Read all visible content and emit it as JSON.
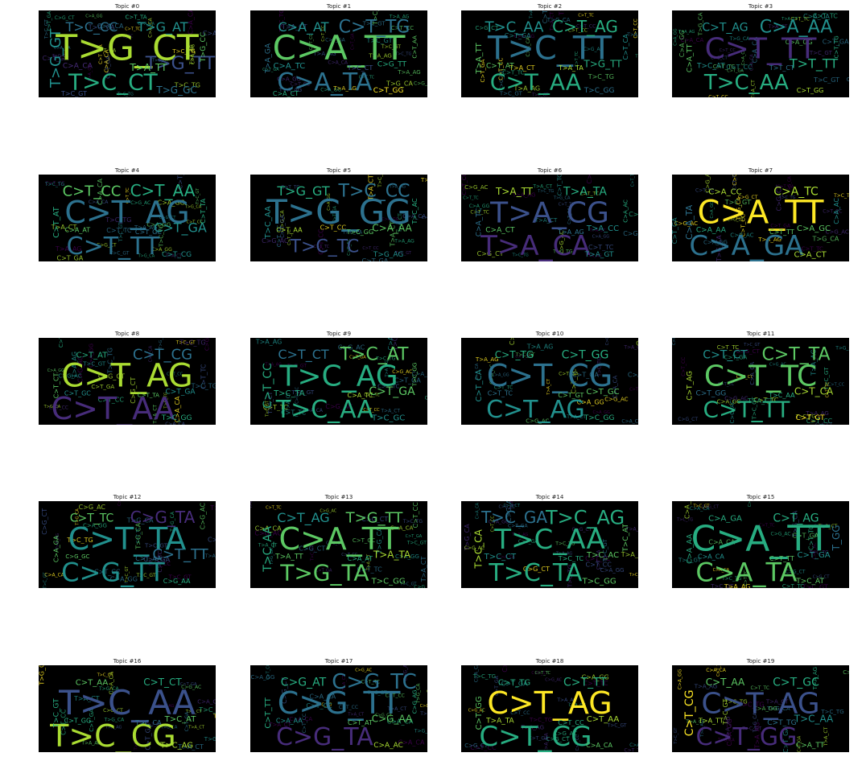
{
  "palette": [
    "#440154",
    "#472c7a",
    "#3b518b",
    "#2c718e",
    "#21908d",
    "#27ad81",
    "#5cc863",
    "#aadc32",
    "#fde725"
  ],
  "panels": [
    {
      "title": "Topic #0",
      "words": [
        {
          "t": "T>G_CT",
          "s": 44,
          "c": 7
        },
        {
          "t": "T>C_CT",
          "s": 28,
          "c": 5
        },
        {
          "t": "T>G_AT",
          "s": 16,
          "c": 4
        },
        {
          "t": "T>C_CC",
          "s": 16,
          "c": 3
        },
        {
          "t": "T>G_TT",
          "s": 22,
          "c": 2
        },
        {
          "t": "T>G_GT",
          "s": 18,
          "c": 4
        },
        {
          "t": "T>G_GC",
          "s": 12,
          "c": 3
        },
        {
          "t": "C>A_CA",
          "s": 9,
          "c": 1
        },
        {
          "t": "T>A_TT",
          "s": 12,
          "c": 6
        },
        {
          "t": "T>G_CC",
          "s": 9,
          "c": 6
        },
        {
          "t": "T>C_GT",
          "s": 8,
          "c": 2
        },
        {
          "t": "C>T_TA",
          "s": 7,
          "c": 5
        }
      ]
    },
    {
      "title": "Topic #1",
      "words": [
        {
          "t": "C>A_TT",
          "s": 42,
          "c": 6
        },
        {
          "t": "C>A_TA",
          "s": 30,
          "c": 3
        },
        {
          "t": "C>T_TG",
          "s": 22,
          "c": 3
        },
        {
          "t": "C>A_AT",
          "s": 16,
          "c": 4
        },
        {
          "t": "C>G_TT",
          "s": 9,
          "c": 5
        },
        {
          "t": "T>A_GA",
          "s": 9,
          "c": 3
        },
        {
          "t": "C>T_GG",
          "s": 9,
          "c": 8
        },
        {
          "t": "C>A_TC",
          "s": 10,
          "c": 4
        },
        {
          "t": "T>C_CT",
          "s": 8,
          "c": 2
        },
        {
          "t": "C>T_AA",
          "s": 7,
          "c": 6
        },
        {
          "t": "C>A_CT",
          "s": 8,
          "c": 5
        }
      ]
    },
    {
      "title": "Topic #2",
      "words": [
        {
          "t": "T>C_TT",
          "s": 40,
          "c": 3
        },
        {
          "t": "C>T_AA",
          "s": 28,
          "c": 5
        },
        {
          "t": "C>T_AG",
          "s": 20,
          "c": 5
        },
        {
          "t": "T>C_AA",
          "s": 18,
          "c": 4
        },
        {
          "t": "T>G_TT",
          "s": 12,
          "c": 5
        },
        {
          "t": "T>A_TT",
          "s": 10,
          "c": 6
        },
        {
          "t": "T>C_GG",
          "s": 9,
          "c": 3
        },
        {
          "t": "C>T_AT",
          "s": 9,
          "c": 6
        },
        {
          "t": "T>A_TA",
          "s": 8,
          "c": 7
        },
        {
          "t": "C>T_CA",
          "s": 8,
          "c": 4
        }
      ]
    },
    {
      "title": "Topic #3",
      "words": [
        {
          "t": "C>T_TT",
          "s": 36,
          "c": 1
        },
        {
          "t": "T>C_AA",
          "s": 26,
          "c": 5
        },
        {
          "t": "C>A_AA",
          "s": 22,
          "c": 4
        },
        {
          "t": "C>T_AG",
          "s": 14,
          "c": 4
        },
        {
          "t": "T>T_TT",
          "s": 16,
          "c": 5
        },
        {
          "t": "C>A_TT",
          "s": 9,
          "c": 6
        },
        {
          "t": "C>T_GG",
          "s": 8,
          "c": 7
        },
        {
          "t": "T>C_AT",
          "s": 9,
          "c": 4
        },
        {
          "t": "T>T_CT",
          "s": 8,
          "c": 3
        },
        {
          "t": "C>T_TG",
          "s": 7,
          "c": 5
        }
      ]
    },
    {
      "title": "Topic #4",
      "words": [
        {
          "t": "C>T_AG",
          "s": 38,
          "c": 3
        },
        {
          "t": "C>T_TT",
          "s": 30,
          "c": 3
        },
        {
          "t": "C>T_AA",
          "s": 20,
          "c": 5
        },
        {
          "t": "C>T_CC",
          "s": 18,
          "c": 6
        },
        {
          "t": "C>T_GA",
          "s": 16,
          "c": 4
        },
        {
          "t": "C>T_AT",
          "s": 10,
          "c": 5
        },
        {
          "t": "C>T_CG",
          "s": 9,
          "c": 4
        },
        {
          "t": "C>A_AT",
          "s": 8,
          "c": 6
        },
        {
          "t": "C>T_GC",
          "s": 8,
          "c": 3
        },
        {
          "t": "C>T_TA",
          "s": 8,
          "c": 5
        }
      ]
    },
    {
      "title": "Topic #5",
      "words": [
        {
          "t": "T>G_GG",
          "s": 42,
          "c": 3
        },
        {
          "t": "T>C_TC",
          "s": 22,
          "c": 2
        },
        {
          "t": "T>C_CC",
          "s": 22,
          "c": 3
        },
        {
          "t": "T>G_GT",
          "s": 16,
          "c": 5
        },
        {
          "t": "C>A_AA",
          "s": 12,
          "c": 6
        },
        {
          "t": "T>C_AA",
          "s": 10,
          "c": 4
        },
        {
          "t": "T>G_AG",
          "s": 9,
          "c": 4
        },
        {
          "t": "C>T_AA",
          "s": 8,
          "c": 7
        },
        {
          "t": "T>C_GG",
          "s": 8,
          "c": 6
        },
        {
          "t": "T>C_AC",
          "s": 8,
          "c": 5
        }
      ]
    },
    {
      "title": "Topic #6",
      "words": [
        {
          "t": "T>A_CG",
          "s": 36,
          "c": 2
        },
        {
          "t": "T>A_CA",
          "s": 34,
          "c": 1
        },
        {
          "t": "T>A_TA",
          "s": 14,
          "c": 5
        },
        {
          "t": "T>A_TT",
          "s": 12,
          "c": 7
        },
        {
          "t": "T>A_CC",
          "s": 10,
          "c": 4
        },
        {
          "t": "C>A_TC",
          "s": 9,
          "c": 3
        },
        {
          "t": "T>A_GT",
          "s": 9,
          "c": 4
        },
        {
          "t": "C>A_CT",
          "s": 9,
          "c": 6
        },
        {
          "t": "T>A_AG",
          "s": 8,
          "c": 3
        },
        {
          "t": "C>A_AC",
          "s": 7,
          "c": 5
        }
      ]
    },
    {
      "title": "Topic #7",
      "words": [
        {
          "t": "C>A_TT",
          "s": 40,
          "c": 8
        },
        {
          "t": "C>A_GA",
          "s": 34,
          "c": 3
        },
        {
          "t": "C>A_TC",
          "s": 14,
          "c": 7
        },
        {
          "t": "C>A_CC",
          "s": 10,
          "c": 7
        },
        {
          "t": "C>A_GC",
          "s": 10,
          "c": 6
        },
        {
          "t": "C>A_TA",
          "s": 11,
          "c": 3
        },
        {
          "t": "C>A_CT",
          "s": 10,
          "c": 7
        },
        {
          "t": "C>A_AA",
          "s": 9,
          "c": 5
        },
        {
          "t": "C>T_TT",
          "s": 8,
          "c": 6
        },
        {
          "t": "C>A_AC",
          "s": 8,
          "c": 4
        }
      ]
    },
    {
      "title": "Topic #8",
      "words": [
        {
          "t": "C>T_AG",
          "s": 40,
          "c": 7
        },
        {
          "t": "C>T_AA",
          "s": 38,
          "c": 1
        },
        {
          "t": "C>T_CG",
          "s": 18,
          "c": 3
        },
        {
          "t": "C>T_AT",
          "s": 10,
          "c": 5
        },
        {
          "t": "C>T_GA",
          "s": 9,
          "c": 4
        },
        {
          "t": "C>T_CT",
          "s": 8,
          "c": 6
        },
        {
          "t": "T>C_GG",
          "s": 9,
          "c": 5
        },
        {
          "t": "C>T_GC",
          "s": 8,
          "c": 4
        },
        {
          "t": "C>T_TA",
          "s": 7,
          "c": 6
        }
      ]
    },
    {
      "title": "Topic #9",
      "words": [
        {
          "t": "T>C_AG",
          "s": 36,
          "c": 5
        },
        {
          "t": "T>C_AA",
          "s": 30,
          "c": 5
        },
        {
          "t": "T>C_AT",
          "s": 22,
          "c": 6
        },
        {
          "t": "C>T_CT",
          "s": 16,
          "c": 3
        },
        {
          "t": "C>T_GA",
          "s": 14,
          "c": 6
        },
        {
          "t": "C>T_CC",
          "s": 14,
          "c": 5
        },
        {
          "t": "T>C_GC",
          "s": 10,
          "c": 4
        },
        {
          "t": "T>C_TA",
          "s": 10,
          "c": 5
        },
        {
          "t": "C>A_TC",
          "s": 8,
          "c": 7
        },
        {
          "t": "T>C_GG",
          "s": 7,
          "c": 6
        }
      ]
    },
    {
      "title": "Topic #10",
      "words": [
        {
          "t": "C>T_CG",
          "s": 38,
          "c": 3
        },
        {
          "t": "C>T_AG",
          "s": 30,
          "c": 4
        },
        {
          "t": "C>T_GG",
          "s": 14,
          "c": 5
        },
        {
          "t": "C>T_TG",
          "s": 12,
          "c": 5
        },
        {
          "t": "C>T_GC",
          "s": 10,
          "c": 6
        },
        {
          "t": "C>T_CA",
          "s": 10,
          "c": 4
        },
        {
          "t": "T>C_GG",
          "s": 9,
          "c": 5
        },
        {
          "t": "C>T_TC",
          "s": 8,
          "c": 3
        },
        {
          "t": "C>T_GT",
          "s": 8,
          "c": 6
        }
      ]
    },
    {
      "title": "Topic #11",
      "words": [
        {
          "t": "C>T_TC",
          "s": 36,
          "c": 6
        },
        {
          "t": "C>T_TT",
          "s": 28,
          "c": 5
        },
        {
          "t": "C>T_TA",
          "s": 22,
          "c": 6
        },
        {
          "t": "C>T_CT",
          "s": 14,
          "c": 4
        },
        {
          "t": "C>T_CA",
          "s": 12,
          "c": 7
        },
        {
          "t": "C>T_AG",
          "s": 9,
          "c": 7
        },
        {
          "t": "C>T_GT",
          "s": 9,
          "c": 8
        },
        {
          "t": "C>T_GG",
          "s": 9,
          "c": 3
        },
        {
          "t": "T>C_AA",
          "s": 8,
          "c": 5
        }
      ]
    },
    {
      "title": "Topic #12",
      "words": [
        {
          "t": "C>T_TA",
          "s": 38,
          "c": 4
        },
        {
          "t": "C>G_TT",
          "s": 32,
          "c": 4
        },
        {
          "t": "C>G_TA",
          "s": 20,
          "c": 1
        },
        {
          "t": "C>T_TC",
          "s": 14,
          "c": 6
        },
        {
          "t": "C>T_TT",
          "s": 18,
          "c": 3
        },
        {
          "t": "C>A_GA",
          "s": 8,
          "c": 6
        },
        {
          "t": "C>G_AA",
          "s": 8,
          "c": 5
        },
        {
          "t": "C>G_GC",
          "s": 7,
          "c": 6
        },
        {
          "t": "C>T_AA",
          "s": 8,
          "c": 3
        }
      ]
    },
    {
      "title": "Topic #13",
      "words": [
        {
          "t": "C>A_TT",
          "s": 38,
          "c": 6
        },
        {
          "t": "T>G_TA",
          "s": 28,
          "c": 6
        },
        {
          "t": "T>G_TT",
          "s": 18,
          "c": 6
        },
        {
          "t": "C>T_AG",
          "s": 16,
          "c": 4
        },
        {
          "t": "T>A_TA",
          "s": 12,
          "c": 7
        },
        {
          "t": "T>C_AA",
          "s": 14,
          "c": 5
        },
        {
          "t": "T>C_GG",
          "s": 10,
          "c": 6
        },
        {
          "t": "T>A_TT",
          "s": 9,
          "c": 6
        },
        {
          "t": "C>A_AT",
          "s": 8,
          "c": 5
        }
      ]
    },
    {
      "title": "Topic #14",
      "words": [
        {
          "t": "T>C_AA",
          "s": 34,
          "c": 5
        },
        {
          "t": "T>C_TA",
          "s": 30,
          "c": 5
        },
        {
          "t": "T>C_AG",
          "s": 24,
          "c": 5
        },
        {
          "t": "T>C_GA",
          "s": 20,
          "c": 3
        },
        {
          "t": "T>C_AC",
          "s": 10,
          "c": 6
        },
        {
          "t": "T>C_CA",
          "s": 12,
          "c": 7
        },
        {
          "t": "T>C_GG",
          "s": 10,
          "c": 6
        },
        {
          "t": "T>C_CT",
          "s": 10,
          "c": 4
        },
        {
          "t": "T>C_TC",
          "s": 8,
          "c": 5
        },
        {
          "t": "T>C_AT",
          "s": 9,
          "c": 6
        }
      ]
    },
    {
      "title": "Topic #15",
      "words": [
        {
          "t": "C>A_TT",
          "s": 44,
          "c": 5
        },
        {
          "t": "C>A_TA",
          "s": 32,
          "c": 6
        },
        {
          "t": "C>T_AG",
          "s": 14,
          "c": 5
        },
        {
          "t": "C>A_GA",
          "s": 10,
          "c": 5
        },
        {
          "t": "C>T_GA",
          "s": 10,
          "c": 4
        },
        {
          "t": "C>A_AA",
          "s": 9,
          "c": 5
        },
        {
          "t": "T>C_AT",
          "s": 9,
          "c": 6
        },
        {
          "t": "C>A_CA",
          "s": 8,
          "c": 4
        },
        {
          "t": "C>T_TT",
          "s": 8,
          "c": 6
        },
        {
          "t": "T_GG",
          "s": 12,
          "c": 3
        }
      ]
    },
    {
      "title": "Topic #16",
      "words": [
        {
          "t": "T>C_AA",
          "s": 42,
          "c": 2
        },
        {
          "t": "T>C_CG",
          "s": 38,
          "c": 7
        },
        {
          "t": "C>T_CT",
          "s": 12,
          "c": 5
        },
        {
          "t": "C>T_AA",
          "s": 10,
          "c": 6
        },
        {
          "t": "T>C_AT",
          "s": 10,
          "c": 6
        },
        {
          "t": "T>C_GT",
          "s": 9,
          "c": 5
        },
        {
          "t": "T>C_AG",
          "s": 10,
          "c": 7
        },
        {
          "t": "C>T_GG",
          "s": 8,
          "c": 5
        },
        {
          "t": "T>C_CA",
          "s": 8,
          "c": 3
        }
      ]
    },
    {
      "title": "Topic #17",
      "words": [
        {
          "t": "C>G_TT",
          "s": 38,
          "c": 3
        },
        {
          "t": "C>G_TA",
          "s": 30,
          "c": 1
        },
        {
          "t": "C>G_TC",
          "s": 26,
          "c": 3
        },
        {
          "t": "C>G_AT",
          "s": 14,
          "c": 5
        },
        {
          "t": "C>G_AA",
          "s": 12,
          "c": 6
        },
        {
          "t": "C>T_TT",
          "s": 10,
          "c": 5
        },
        {
          "t": "C>A_AC",
          "s": 9,
          "c": 7
        },
        {
          "t": "C>A_AA",
          "s": 8,
          "c": 4
        },
        {
          "t": "C>T_AT",
          "s": 8,
          "c": 6
        },
        {
          "t": "C>G_AG",
          "s": 7,
          "c": 5
        }
      ]
    },
    {
      "title": "Topic #18",
      "words": [
        {
          "t": "C>T_AG",
          "s": 38,
          "c": 8
        },
        {
          "t": "C>T_CG",
          "s": 34,
          "c": 5
        },
        {
          "t": "C>T_TT",
          "s": 14,
          "c": 5
        },
        {
          "t": "C>T_TG",
          "s": 10,
          "c": 5
        },
        {
          "t": "C>T_AA",
          "s": 10,
          "c": 7
        },
        {
          "t": "C>T_GG",
          "s": 10,
          "c": 6
        },
        {
          "t": "C>A_CA",
          "s": 8,
          "c": 6
        },
        {
          "t": "T>A_TA",
          "s": 9,
          "c": 7
        },
        {
          "t": "C>T_CC",
          "s": 8,
          "c": 5
        }
      ]
    },
    {
      "title": "Topic #19",
      "words": [
        {
          "t": "C>T_AG",
          "s": 36,
          "c": 2
        },
        {
          "t": "C>T_GG",
          "s": 30,
          "c": 1
        },
        {
          "t": "C>T_GC",
          "s": 14,
          "c": 5
        },
        {
          "t": "C>T_AA",
          "s": 12,
          "c": 6
        },
        {
          "t": "T>C_AA",
          "s": 12,
          "c": 4
        },
        {
          "t": "C>T_CG",
          "s": 14,
          "c": 8
        },
        {
          "t": "C>A_TT",
          "s": 9,
          "c": 6
        },
        {
          "t": "T>A_TT",
          "s": 8,
          "c": 7
        },
        {
          "t": "C>T_TG",
          "s": 9,
          "c": 3
        }
      ]
    }
  ]
}
